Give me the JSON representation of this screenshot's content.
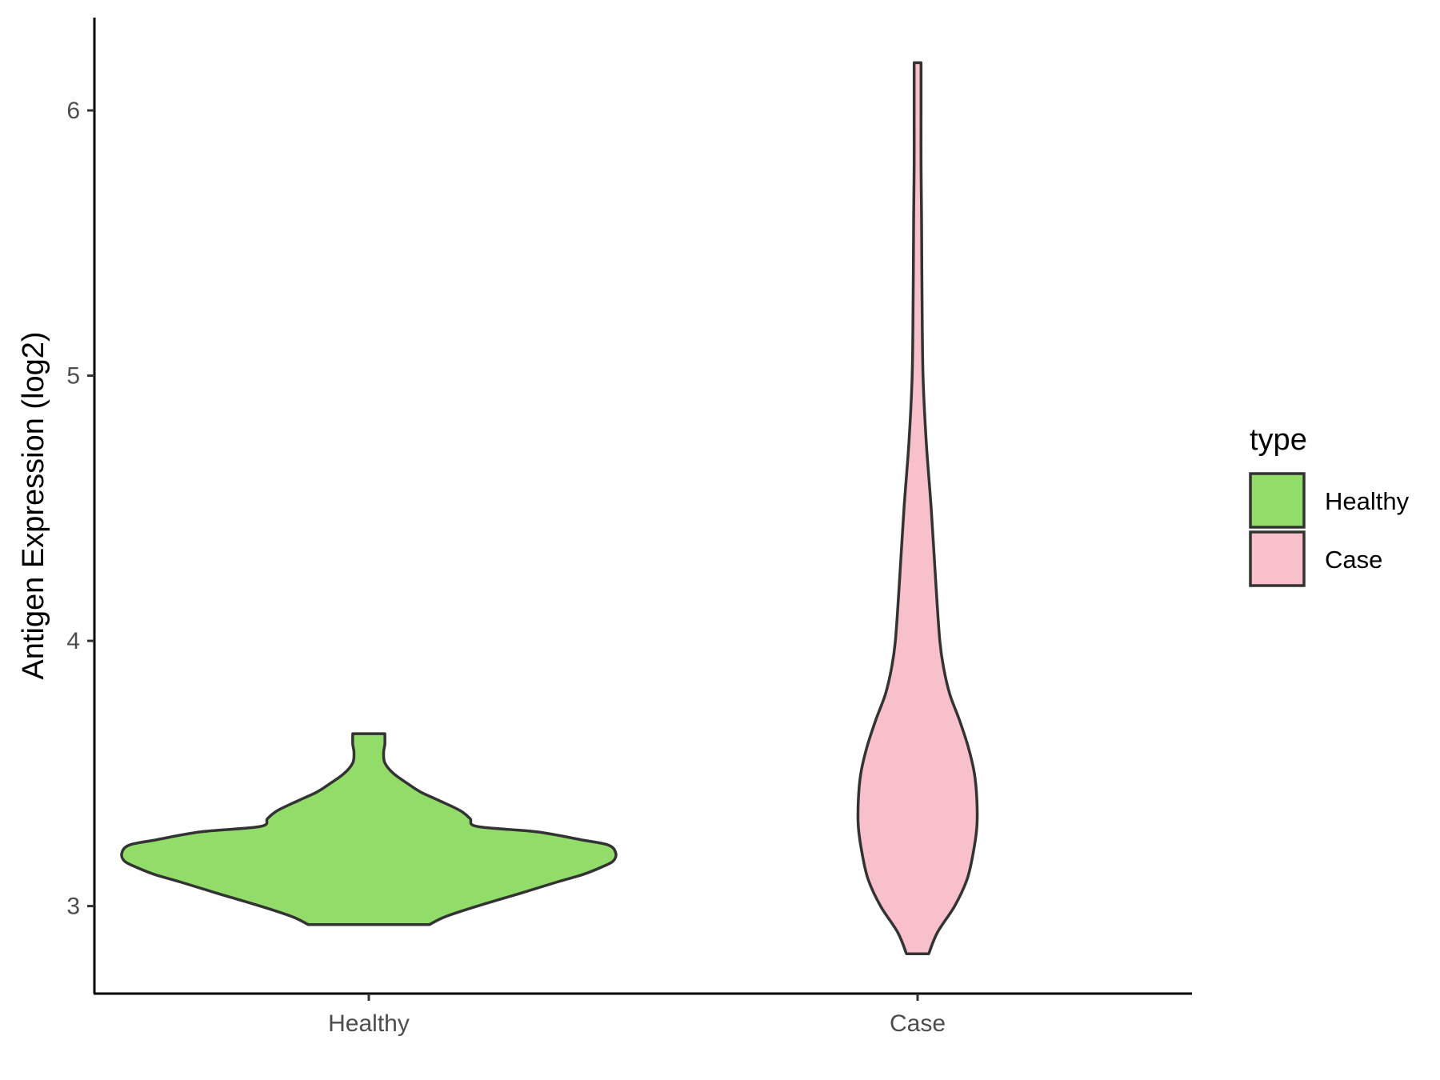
{
  "chart_data": {
    "type": "violin",
    "title": "",
    "xlabel": "",
    "ylabel": "Antigen Expression (log2)",
    "ylim": [
      2.67,
      6.35
    ],
    "yticks": [
      3,
      4,
      5,
      6
    ],
    "categories": [
      "Healthy",
      "Case"
    ],
    "series": [
      {
        "name": "Healthy",
        "color": "#92dd6a",
        "range": [
          2.93,
          3.65
        ],
        "density": [
          [
            2.93,
            0.245
          ],
          [
            2.96,
            0.31
          ],
          [
            3.0,
            0.44
          ],
          [
            3.05,
            0.62
          ],
          [
            3.09,
            0.76
          ],
          [
            3.12,
            0.87
          ],
          [
            3.15,
            0.95
          ],
          [
            3.17,
            0.99
          ],
          [
            3.2,
            1.0
          ],
          [
            3.23,
            0.97
          ],
          [
            3.25,
            0.86
          ],
          [
            3.28,
            0.68
          ],
          [
            3.3,
            0.44
          ],
          [
            3.33,
            0.41
          ],
          [
            3.36,
            0.37
          ],
          [
            3.4,
            0.28
          ],
          [
            3.43,
            0.21
          ],
          [
            3.46,
            0.16
          ],
          [
            3.5,
            0.1
          ],
          [
            3.54,
            0.065
          ],
          [
            3.58,
            0.06
          ],
          [
            3.61,
            0.065
          ],
          [
            3.65,
            0.065
          ]
        ]
      },
      {
        "name": "Case",
        "color": "#f8c0cb",
        "range": [
          2.82,
          6.18
        ],
        "density": [
          [
            2.82,
            0.045
          ],
          [
            2.9,
            0.08
          ],
          [
            3.0,
            0.15
          ],
          [
            3.1,
            0.2
          ],
          [
            3.2,
            0.225
          ],
          [
            3.3,
            0.24
          ],
          [
            3.4,
            0.24
          ],
          [
            3.5,
            0.23
          ],
          [
            3.6,
            0.205
          ],
          [
            3.7,
            0.17
          ],
          [
            3.8,
            0.13
          ],
          [
            3.9,
            0.105
          ],
          [
            4.0,
            0.09
          ],
          [
            4.2,
            0.075
          ],
          [
            4.5,
            0.055
          ],
          [
            4.75,
            0.035
          ],
          [
            5.0,
            0.022
          ],
          [
            5.3,
            0.018
          ],
          [
            5.6,
            0.016
          ],
          [
            5.8,
            0.014
          ],
          [
            6.0,
            0.014
          ],
          [
            6.18,
            0.014
          ]
        ]
      }
    ],
    "legend": {
      "title": "type",
      "placement": "right",
      "entries": [
        {
          "label": "Healthy",
          "color": "#92dd6a"
        },
        {
          "label": "Case",
          "color": "#f8c0cb"
        }
      ]
    },
    "grid": false
  }
}
